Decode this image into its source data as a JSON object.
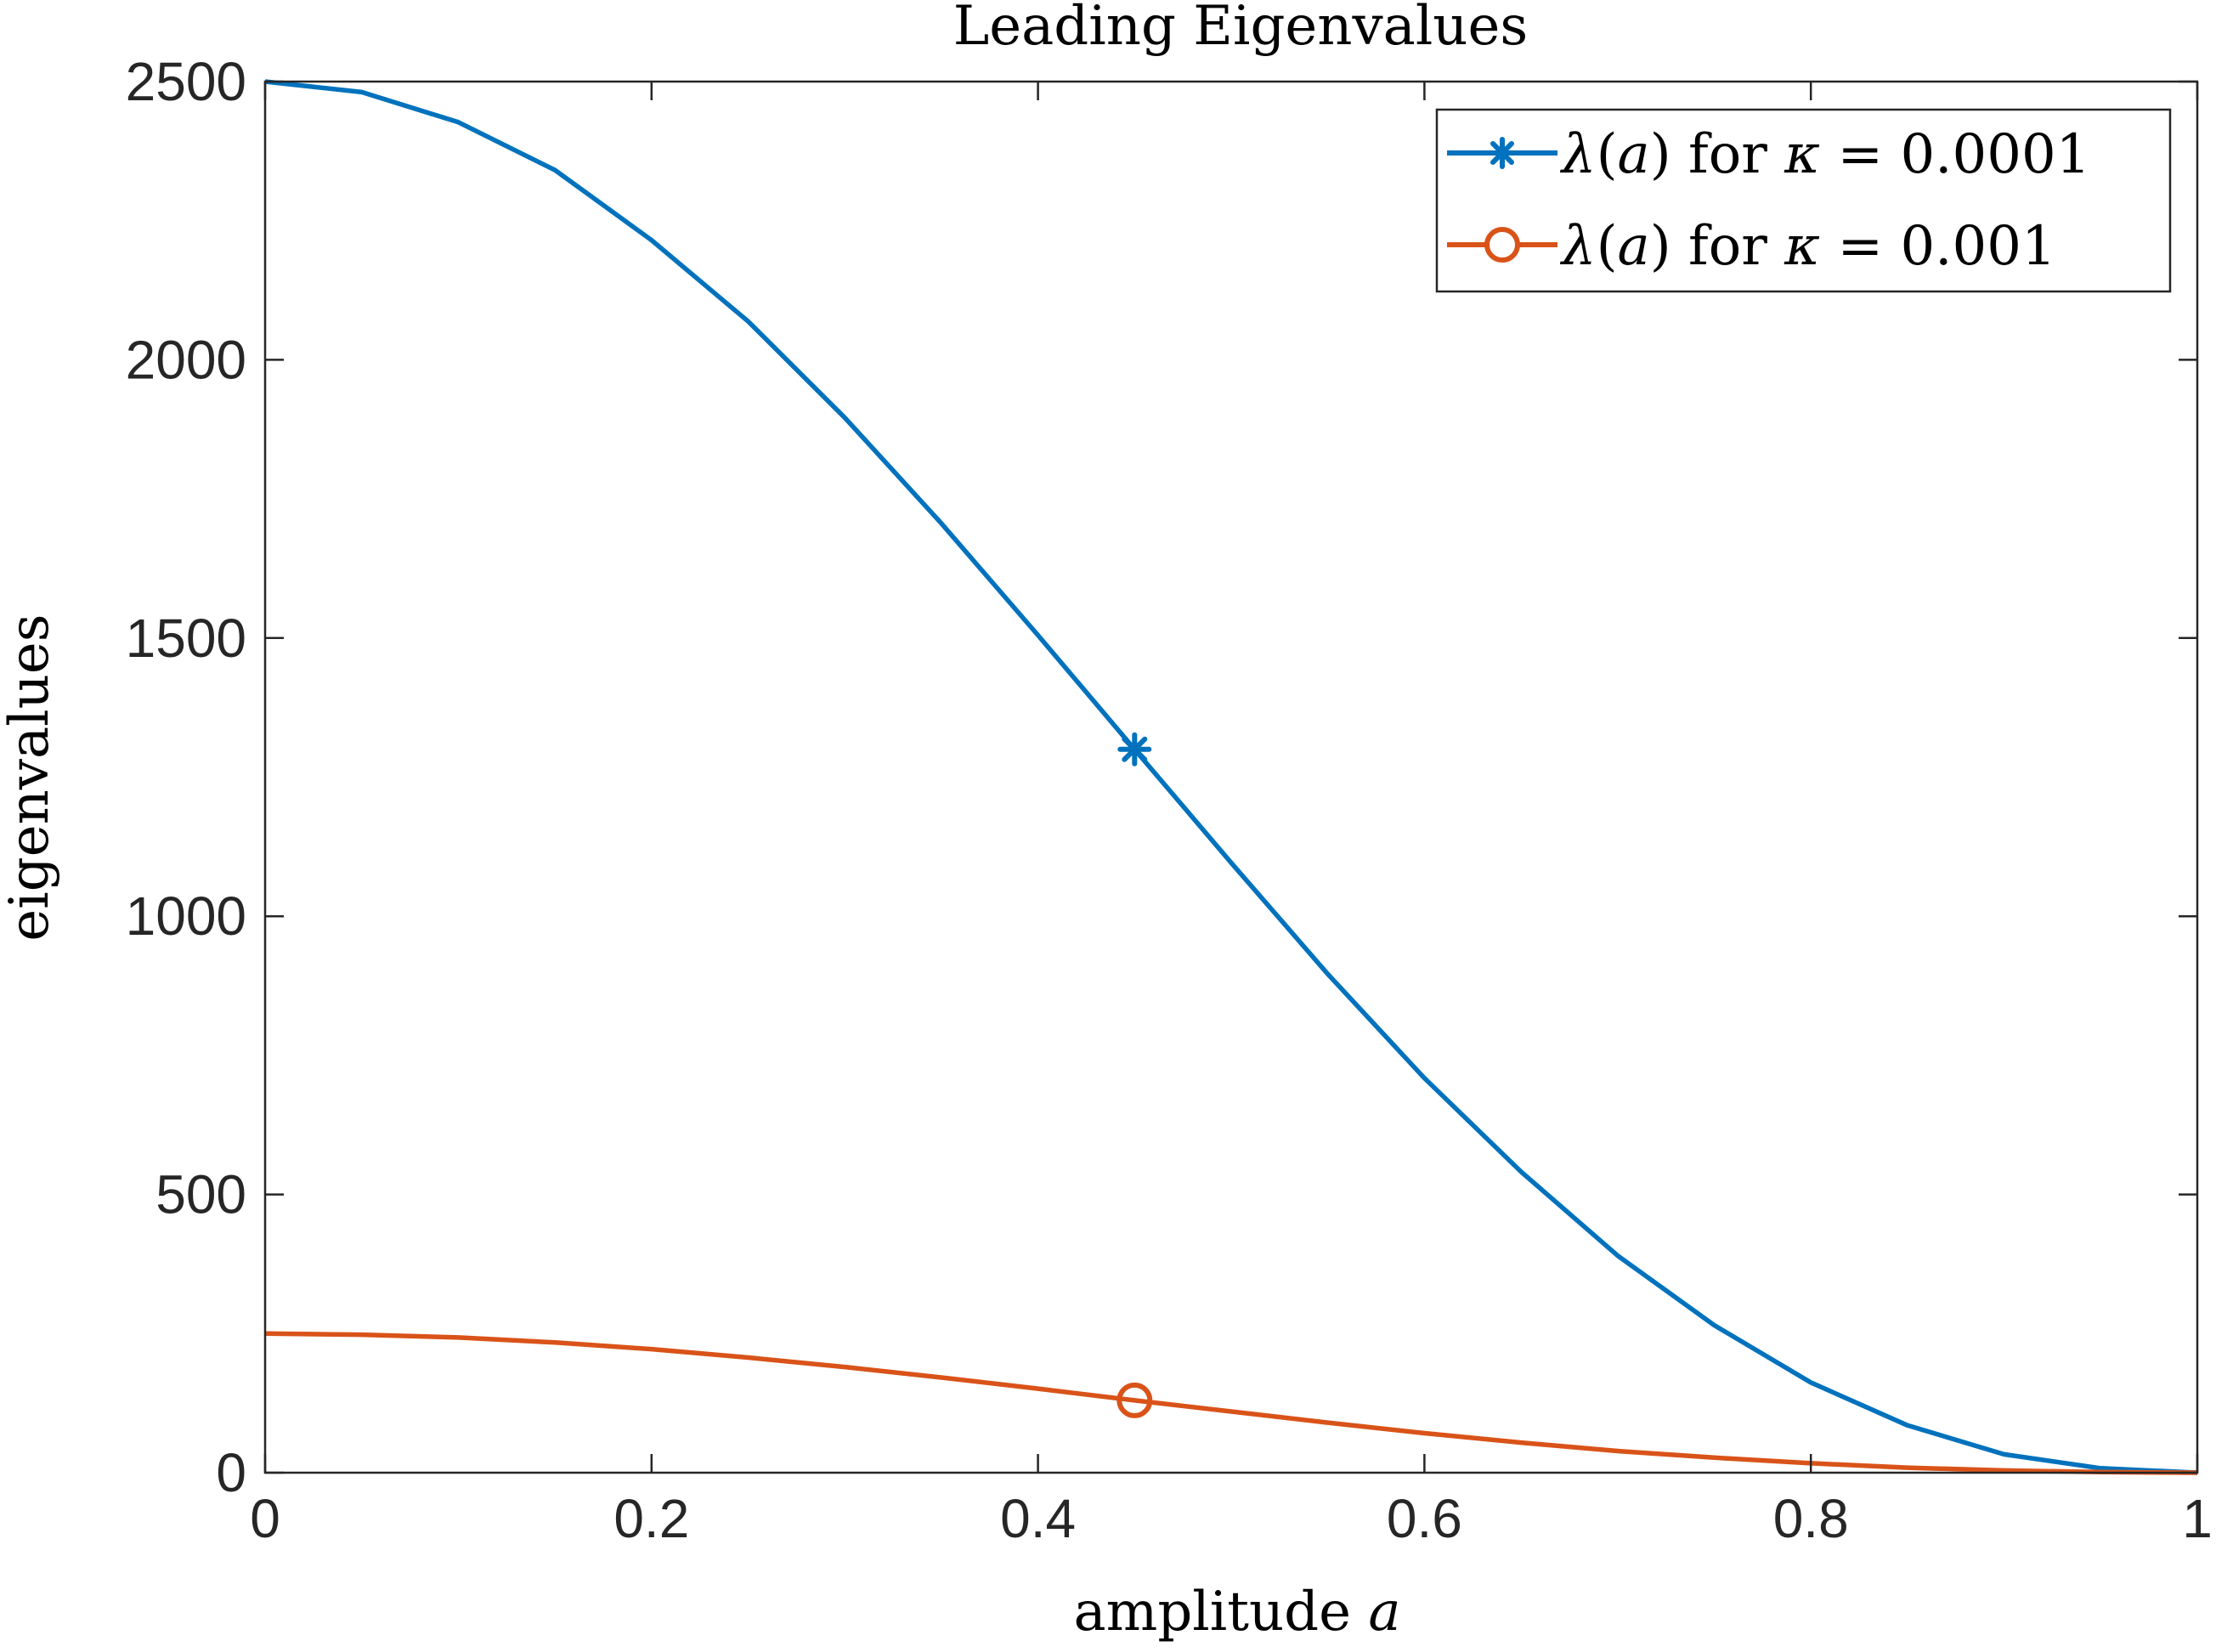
{
  "chart_data": {
    "type": "line",
    "title": "Leading Eigenvalues",
    "xlabel": {
      "text": "amplitude ",
      "variable": "a"
    },
    "ylabel": "eigenvalues",
    "xlim": [
      0,
      1
    ],
    "ylim": [
      0,
      2500
    ],
    "xticks": [
      0,
      0.2,
      0.4,
      0.6,
      0.8,
      1
    ],
    "xtick_labels": [
      "0",
      "0.2",
      "0.4",
      "0.6",
      "0.8",
      "1"
    ],
    "yticks": [
      0,
      500,
      1000,
      1500,
      2000,
      2500
    ],
    "ytick_labels": [
      "0",
      "500",
      "1000",
      "1500",
      "2000",
      "2500"
    ],
    "grid": false,
    "legend_position": "top-right",
    "x": [
      0,
      0.05,
      0.1,
      0.15,
      0.2,
      0.25,
      0.3,
      0.35,
      0.4,
      0.45,
      0.5,
      0.55,
      0.6,
      0.65,
      0.7,
      0.75,
      0.8,
      0.85,
      0.9,
      0.95,
      1
    ],
    "series": [
      {
        "name": "λ(a) for κ = 0.0001",
        "legend": {
          "lambda": "λ",
          "arg": "a",
          "word": "for",
          "kappa": "κ",
          "eq": "=",
          "value": "0.0001"
        },
        "color": "#0072BD",
        "marker": "asterisk",
        "marker_at_x": 0.45,
        "values": [
          2500,
          2481,
          2427,
          2341,
          2215,
          2069,
          1896,
          1706,
          1505,
          1300,
          1096,
          896,
          709,
          541,
          390,
          265,
          162,
          85,
          33,
          8,
          0
        ]
      },
      {
        "name": "λ(a) for κ = 0.001",
        "legend": {
          "lambda": "λ",
          "arg": "a",
          "word": "for",
          "kappa": "κ",
          "eq": "=",
          "value": "0.001"
        },
        "color": "#D95319",
        "marker": "circle",
        "marker_at_x": 0.45,
        "values": [
          250,
          248,
          243,
          234,
          222,
          207,
          190,
          171,
          151,
          130,
          110,
          90,
          71,
          54,
          39,
          27,
          17,
          9,
          4,
          1,
          0
        ]
      }
    ]
  }
}
